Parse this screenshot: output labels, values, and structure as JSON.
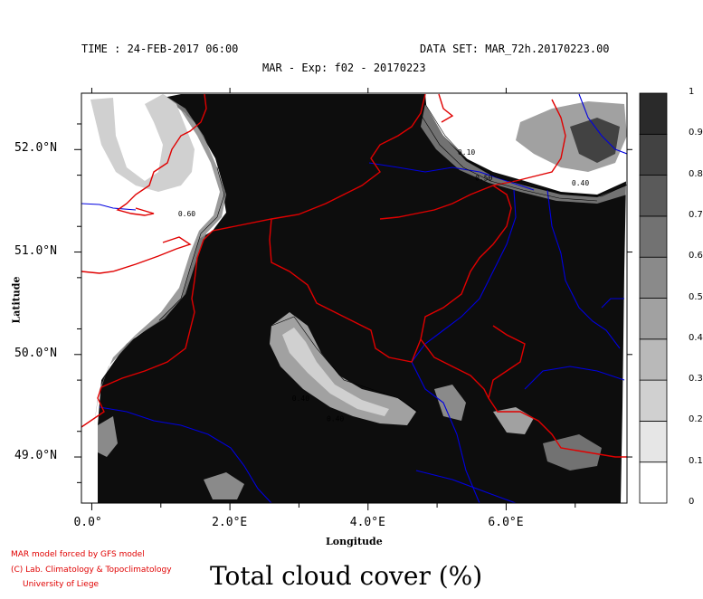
{
  "header": {
    "time": "TIME : 24-FEB-2017 06:00",
    "dataset": "DATA SET: MAR_72h.20170223.00",
    "experiment": "MAR - Exp: f02 - 20170223"
  },
  "credits": {
    "line1": "MAR model forced by GFS model",
    "line2": "(C) Lab. Climatology & Topoclimatology",
    "line3": "University of Liege"
  },
  "chart_data": {
    "type": "heatmap",
    "title": "Total cloud cover (%)",
    "xlabel": "Longitude",
    "ylabel": "Latitude",
    "xlim": [
      -0.15,
      7.75
    ],
    "ylim": [
      48.55,
      52.55
    ],
    "x_ticks": [
      {
        "value": 0,
        "label": "0.0°"
      },
      {
        "value": 2,
        "label": "2.0°E"
      },
      {
        "value": 4,
        "label": "4.0°E"
      },
      {
        "value": 6,
        "label": "6.0°E"
      }
    ],
    "y_ticks": [
      {
        "value": 49,
        "label": "49.0°N"
      },
      {
        "value": 50,
        "label": "50.0°N"
      },
      {
        "value": 51,
        "label": "51.0°N"
      },
      {
        "value": 52,
        "label": "52.0°N"
      }
    ],
    "colorbar": {
      "levels": [
        0,
        0.1,
        0.2,
        0.3,
        0.4,
        0.5,
        0.6,
        0.7,
        0.8,
        0.9,
        1
      ],
      "labels": [
        "0",
        "0.1",
        "0.2",
        "0.3",
        "0.4",
        "0.5",
        "0.6",
        "0.7",
        "0.8",
        "0.9",
        "1"
      ],
      "colors": [
        "#ffffff",
        "#e6e6e6",
        "#d0d0d0",
        "#b9b9b9",
        "#a1a1a1",
        "#8a8a8a",
        "#727272",
        "#5a5a5a",
        "#424242",
        "#2a2a2a",
        "#0d0d0d"
      ]
    },
    "contour_labels": [
      {
        "text": "0.10",
        "x": 5.3,
        "y": 51.95
      },
      {
        "text": "0.50",
        "x": 5.55,
        "y": 51.7
      },
      {
        "text": "0.40",
        "x": 6.95,
        "y": 51.65
      },
      {
        "text": "0.60",
        "x": 1.25,
        "y": 51.35
      },
      {
        "text": "0.40",
        "x": 2.9,
        "y": 49.55
      },
      {
        "text": "0.40",
        "x": 3.4,
        "y": 49.35
      }
    ],
    "colors": {
      "border": "#e00000",
      "river": "#0000e0",
      "fill_dominant": "#0d0d0d"
    }
  }
}
